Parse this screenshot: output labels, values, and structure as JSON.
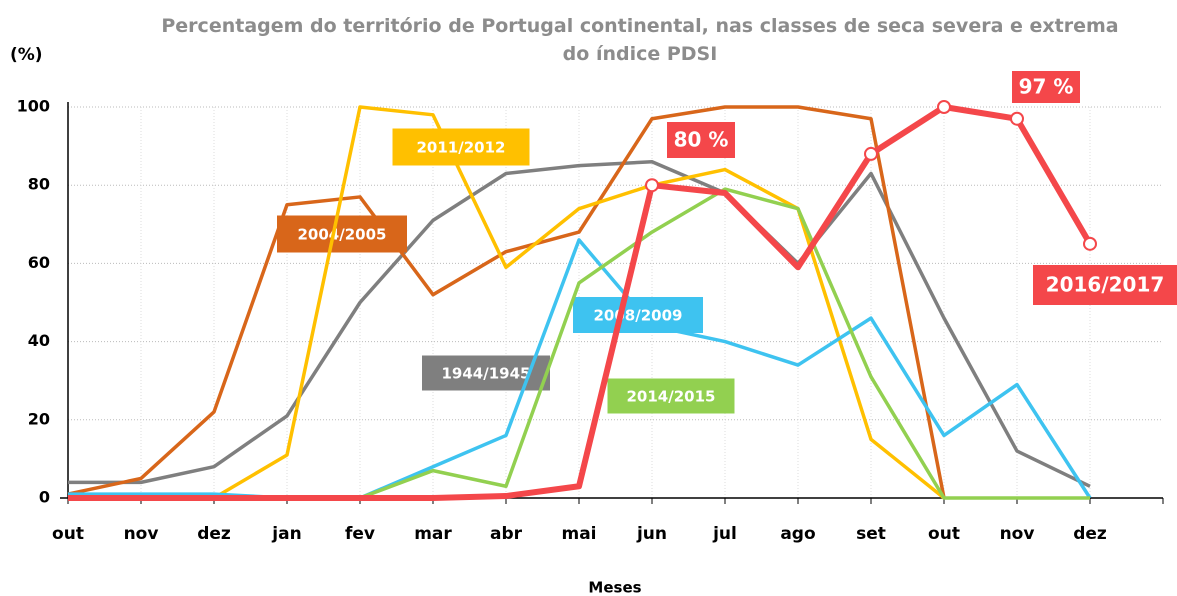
{
  "chart_data": {
    "type": "line",
    "title": "Percentagem do território de Portugal continental, nas classes de seca severa e extrema do índice PDSI",
    "y_label": "(%)",
    "x_label": "Meses",
    "categories": [
      "out",
      "nov",
      "dez",
      "jan",
      "fev",
      "mar",
      "abr",
      "mai",
      "jun",
      "jul",
      "ago",
      "set",
      "out",
      "nov",
      "dez"
    ],
    "ylim": [
      0,
      100
    ],
    "yticks": [
      0,
      20,
      40,
      60,
      80,
      100
    ],
    "grid": true,
    "series": [
      {
        "name": "1944/1945",
        "color": "#7f7f7f",
        "values": [
          4,
          4,
          8,
          21,
          50,
          71,
          83,
          85,
          86,
          78,
          60,
          83,
          46,
          12,
          3
        ]
      },
      {
        "name": "2004/2005",
        "color": "#d8661a",
        "values": [
          1,
          5,
          22,
          75,
          77,
          52,
          63,
          68,
          97,
          100,
          100,
          97,
          0,
          null,
          null
        ]
      },
      {
        "name": "2011/2012",
        "color": "#ffc000",
        "values": [
          0,
          0,
          0,
          11,
          100,
          98,
          59,
          74,
          80,
          84,
          74,
          15,
          0,
          null,
          null
        ]
      },
      {
        "name": "2008/2009",
        "color": "#3ec3f0",
        "values": [
          1,
          1,
          1,
          0,
          0,
          8,
          16,
          66,
          44,
          40,
          34,
          46,
          16,
          29,
          0
        ]
      },
      {
        "name": "2014/2015",
        "color": "#92d050",
        "values": [
          null,
          null,
          null,
          null,
          0,
          7,
          3,
          55,
          68,
          79,
          74,
          31,
          0,
          0,
          0
        ]
      },
      {
        "name": "2016/2017",
        "color": "#f4474a",
        "values": [
          0,
          0,
          0,
          0,
          0,
          0,
          0.5,
          3,
          80,
          78,
          59,
          88,
          100,
          97,
          65
        ],
        "line_width": 6,
        "marker_indices": [
          8,
          11,
          12,
          13,
          14
        ]
      }
    ],
    "annotations": [
      "80 %",
      "97 %"
    ]
  }
}
